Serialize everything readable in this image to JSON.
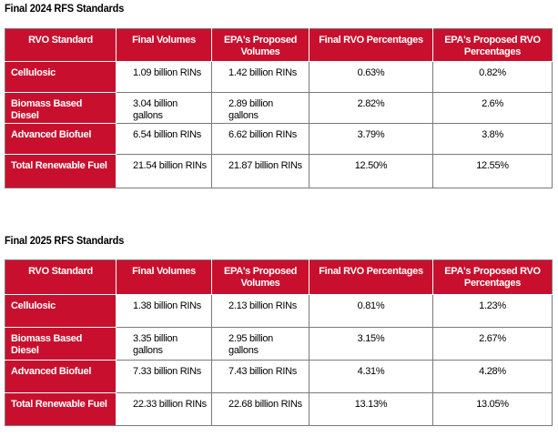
{
  "tables": [
    {
      "title": "Final 2024 RFS Standards",
      "headers": [
        "RVO Standard",
        "Final Volumes",
        "EPA's Proposed Volumes",
        "Final RVO Percentages",
        "EPA's Proposed RVO Percentages"
      ],
      "rows": [
        {
          "standard": "Cellulosic",
          "final_volume": "1.09 billion RINs",
          "proposed_volume": "1.42 billion RINs",
          "final_pct": "0.63%",
          "proposed_pct": "0.82%"
        },
        {
          "standard": "Biomass Based Diesel",
          "final_volume": "3.04 billion gallons",
          "proposed_volume": "2.89 billion gallons",
          "final_pct": "2.82%",
          "proposed_pct": "2.6%"
        },
        {
          "standard": "Advanced Biofuel",
          "final_volume": "6.54 billion RINs",
          "proposed_volume": "6.62 billion RINs",
          "final_pct": "3.79%",
          "proposed_pct": "3.8%"
        },
        {
          "standard": "Total Renewable Fuel",
          "final_volume": "21.54 billion RINs",
          "proposed_volume": "21.87 billion RINs",
          "final_pct": "12.50%",
          "proposed_pct": "12.55%"
        }
      ]
    },
    {
      "title": "Final 2025 RFS Standards",
      "headers": [
        "RVO Standard",
        "Final Volumes",
        "EPA's Proposed Volumes",
        "Final RVO Percentages",
        "EPA's Proposed RVO Percentages"
      ],
      "rows": [
        {
          "standard": "Cellulosic",
          "final_volume": "1.38 billion RINs",
          "proposed_volume": "2.13 billion RINs",
          "final_pct": "0.81%",
          "proposed_pct": "1.23%"
        },
        {
          "standard": "Biomass Based Diesel",
          "final_volume": "3.35 billion gallons",
          "proposed_volume": "2.95 billion gallons",
          "final_pct": "3.15%",
          "proposed_pct": "2.67%"
        },
        {
          "standard": "Advanced Biofuel",
          "final_volume": "7.33 billion RINs",
          "proposed_volume": "7.43 billion RINs",
          "final_pct": "4.31%",
          "proposed_pct": "4.28%"
        },
        {
          "standard": "Total Renewable Fuel",
          "final_volume": "22.33 billion RINs",
          "proposed_volume": "22.68 billion RINs",
          "final_pct": "13.13%",
          "proposed_pct": "13.05%"
        }
      ]
    }
  ],
  "colors": {
    "header_red": "#c8102e",
    "header_text": "#ffffff",
    "border": "#7a7a7a"
  }
}
